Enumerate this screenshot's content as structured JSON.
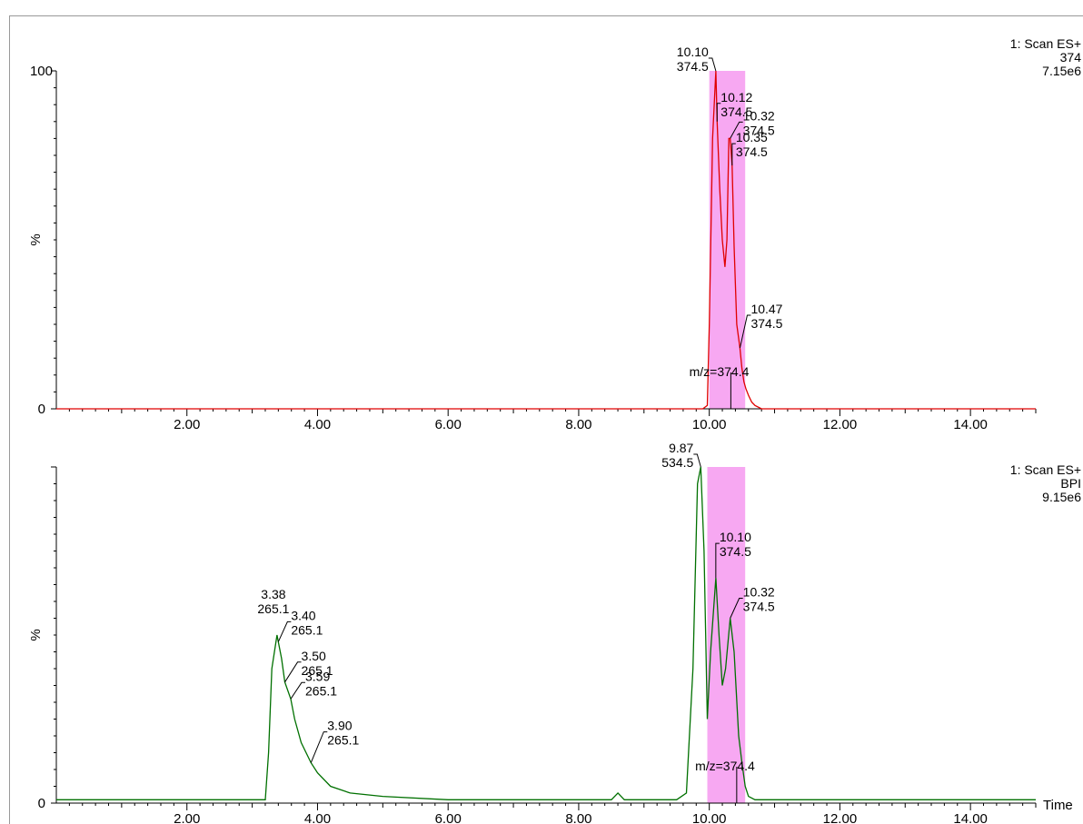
{
  "chart_data": [
    {
      "type": "line",
      "color": "#e00000",
      "info": [
        "1: Scan ES+",
        "374",
        "7.15e6"
      ],
      "ylabel": "%",
      "ytick_labels": [
        "100",
        "0"
      ],
      "xlim": [
        0,
        15
      ],
      "x_ticks": [
        "2.00",
        "4.00",
        "6.00",
        "8.00",
        "10.00",
        "12.00",
        "14.00"
      ],
      "x_tick_values": [
        2,
        4,
        6,
        8,
        10,
        12,
        14
      ],
      "show_time_label": false,
      "highlight": {
        "color": "#f7a8f2",
        "x_range": [
          10.0,
          10.55
        ]
      },
      "marker_label": {
        "text": "m/z=374.4",
        "x": 10.33
      },
      "series": [
        {
          "x": [
            0,
            9.9,
            9.97,
            10.0,
            10.05,
            10.1,
            10.12,
            10.16,
            10.2,
            10.24,
            10.27,
            10.3,
            10.32,
            10.35,
            10.38,
            10.42,
            10.47,
            10.5,
            10.53,
            10.56,
            10.6,
            10.65,
            10.7,
            10.8,
            15
          ],
          "y": [
            0,
            0,
            1,
            25,
            80,
            100,
            85,
            65,
            50,
            42,
            50,
            80,
            80,
            72,
            48,
            25,
            18,
            12,
            8,
            6,
            4,
            2,
            1,
            0,
            0
          ]
        }
      ],
      "peaks": [
        {
          "rt": "10.10",
          "mz": "374.5",
          "x": 10.1,
          "y": 100
        },
        {
          "rt": "10.12",
          "mz": "374.5",
          "x": 10.12,
          "y": 85
        },
        {
          "rt": "10.32",
          "mz": "374.5",
          "x": 10.32,
          "y": 80
        },
        {
          "rt": "10.35",
          "mz": "374.5",
          "x": 10.35,
          "y": 72
        },
        {
          "rt": "10.47",
          "mz": "374.5",
          "x": 10.47,
          "y": 18
        }
      ]
    },
    {
      "type": "line",
      "color": "#007000",
      "info": [
        "1: Scan ES+",
        "BPI",
        "9.15e6"
      ],
      "ylabel": "%",
      "ytick_labels": [
        "",
        "0"
      ],
      "xlim": [
        0,
        15
      ],
      "x_ticks": [
        "2.00",
        "4.00",
        "6.00",
        "8.00",
        "10.00",
        "12.00",
        "14.00"
      ],
      "x_tick_values": [
        2,
        4,
        6,
        8,
        10,
        12,
        14
      ],
      "time_label": "Time",
      "show_time_label": true,
      "highlight": {
        "color": "#f7a8f2",
        "x_range": [
          9.97,
          10.55
        ]
      },
      "marker_label": {
        "text": "m/z=374.4",
        "x": 10.42
      },
      "series": [
        {
          "x": [
            0,
            3.2,
            3.25,
            3.3,
            3.38,
            3.4,
            3.45,
            3.5,
            3.59,
            3.65,
            3.75,
            3.9,
            4.0,
            4.2,
            4.5,
            5.0,
            6.0,
            8.5,
            8.6,
            8.7,
            9.5,
            9.65,
            9.75,
            9.82,
            9.87,
            9.92,
            9.97,
            10.02,
            10.1,
            10.15,
            10.2,
            10.25,
            10.32,
            10.38,
            10.45,
            10.5,
            10.55,
            10.6,
            10.7,
            15
          ],
          "y": [
            1,
            1,
            15,
            40,
            50,
            48,
            43,
            36,
            31,
            25,
            18,
            12,
            9,
            5,
            3,
            2,
            1,
            1,
            3,
            1,
            1,
            3,
            40,
            95,
            100,
            75,
            25,
            45,
            67,
            50,
            35,
            40,
            55,
            45,
            20,
            12,
            5,
            2,
            1,
            1
          ]
        }
      ],
      "peaks": [
        {
          "rt": "3.38",
          "mz": "265.1",
          "x": 3.38,
          "y": 50
        },
        {
          "rt": "3.40",
          "mz": "265.1",
          "x": 3.4,
          "y": 48
        },
        {
          "rt": "3.50",
          "mz": "265.1",
          "x": 3.5,
          "y": 36
        },
        {
          "rt": "3.59",
          "mz": "265.1",
          "x": 3.59,
          "y": 31
        },
        {
          "rt": "3.90",
          "mz": "265.1",
          "x": 3.9,
          "y": 12
        },
        {
          "rt": "9.87",
          "mz": "534.5",
          "x": 9.87,
          "y": 100
        },
        {
          "rt": "10.10",
          "mz": "374.5",
          "x": 10.1,
          "y": 67
        },
        {
          "rt": "10.32",
          "mz": "374.5",
          "x": 10.32,
          "y": 55
        }
      ]
    }
  ]
}
